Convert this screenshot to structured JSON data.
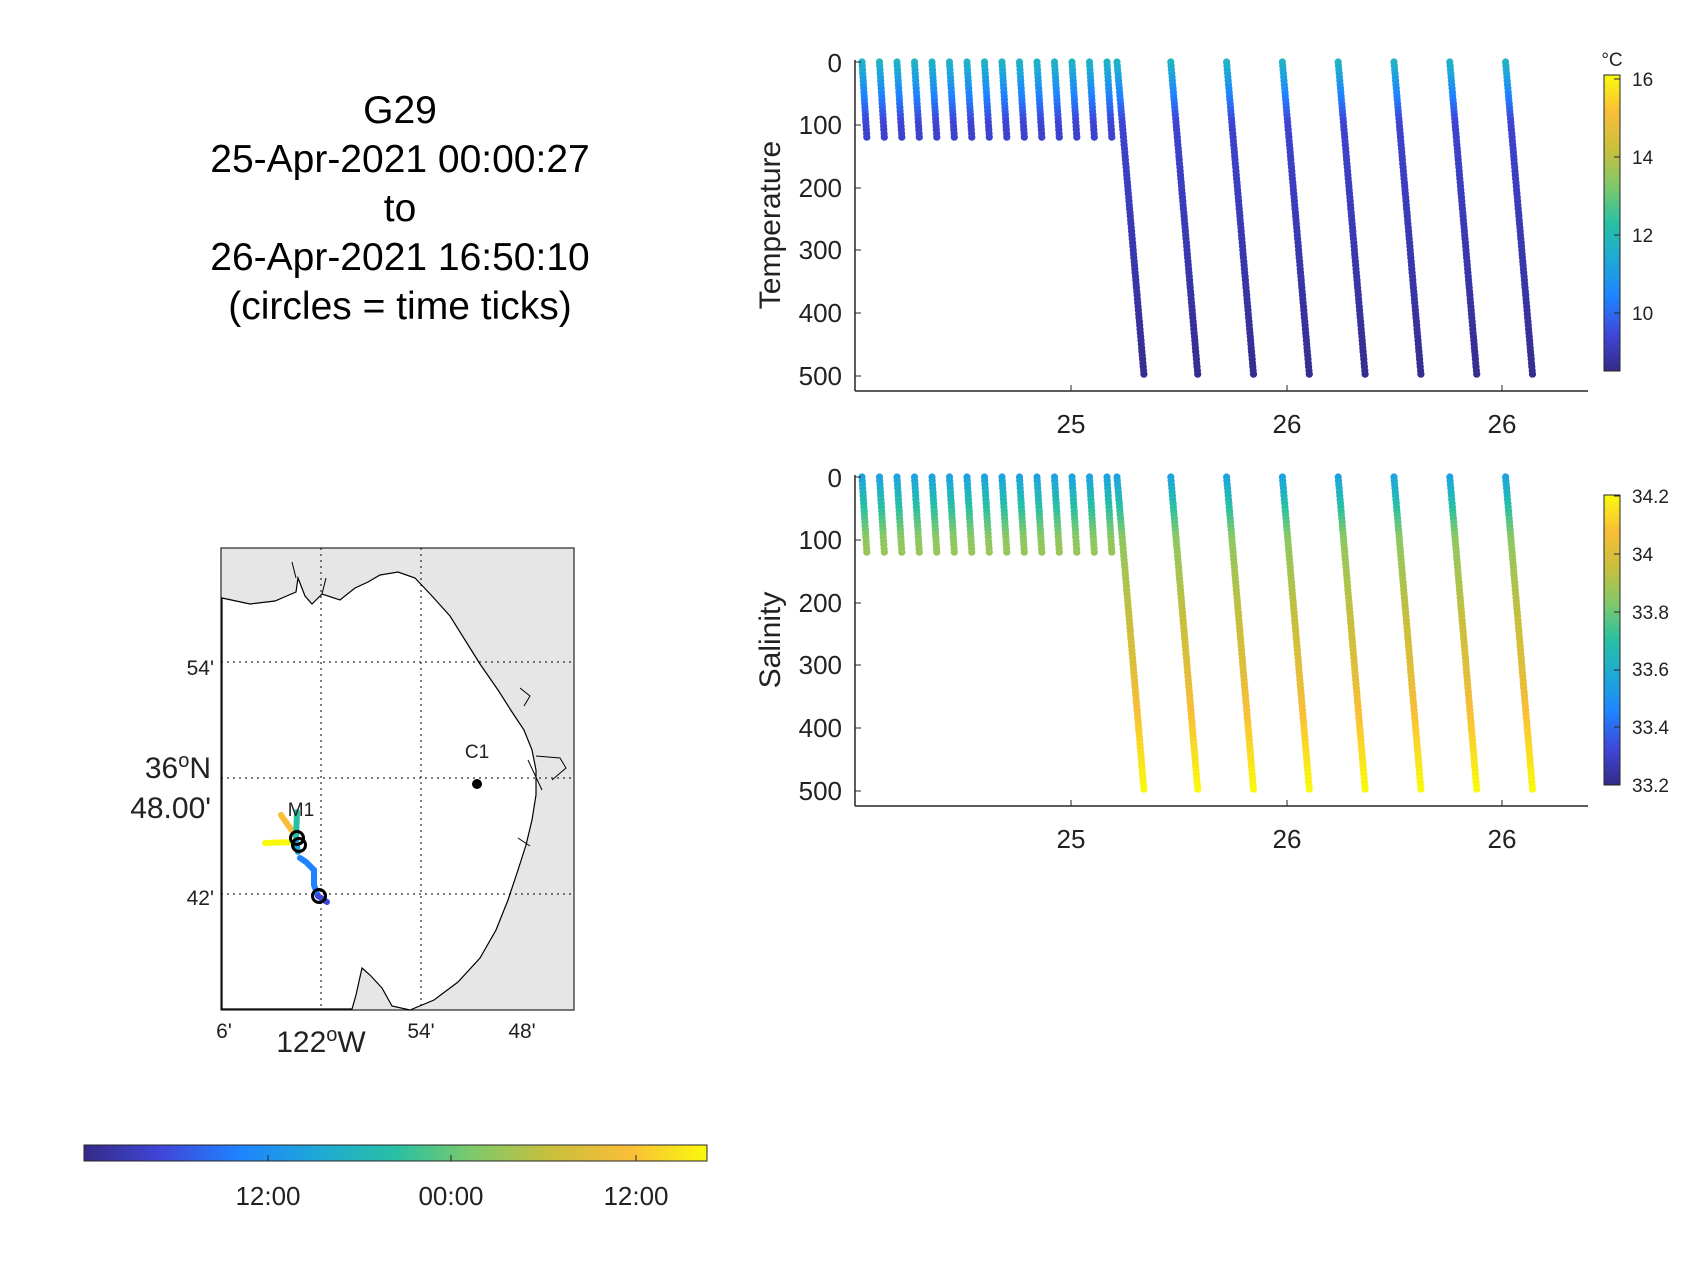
{
  "title": {
    "lines": [
      "G29",
      "25-Apr-2021 00:00:27",
      "to",
      "26-Apr-2021 16:50:10",
      "(circles = time ticks)"
    ]
  },
  "colors": {
    "parula": [
      "#352a87",
      "#3f47d9",
      "#1f83ff",
      "#1ea9d7",
      "#28c0a3",
      "#7fc96a",
      "#c9bf3c",
      "#f9be38",
      "#f9f90e"
    ],
    "land": "#e6e6e6",
    "axis": "#262626"
  },
  "temperature_panel": {
    "ylabel": "Temperature",
    "yticks": [
      "0",
      "100",
      "200",
      "300",
      "400",
      "500"
    ],
    "xticks": [
      "25",
      "26",
      "26"
    ],
    "colorbar_unit": "°C",
    "colorbar_ticks": [
      "16",
      "14",
      "12",
      "10"
    ]
  },
  "salinity_panel": {
    "ylabel": "Salinity",
    "yticks": [
      "0",
      "100",
      "200",
      "300",
      "400",
      "500"
    ],
    "xticks": [
      "25",
      "26",
      "26"
    ],
    "colorbar_ticks": [
      "34.2",
      "34",
      "33.8",
      "33.6",
      "33.4",
      "33.2"
    ]
  },
  "map": {
    "lat_ticks": [
      "54'",
      "42'"
    ],
    "lat_center_line1": "36",
    "lat_center_deg": "o",
    "lat_center_hemi": "N",
    "lat_center_line2": "48.00'",
    "lon_ticks": [
      "6'",
      "54'",
      "48'"
    ],
    "lon_center": "122",
    "lon_center_deg": "o",
    "lon_center_hemi": "W",
    "stations": [
      "M1",
      "C1"
    ]
  },
  "time_colorbar": {
    "ticks": [
      "12:00",
      "00:00",
      "12:00"
    ]
  },
  "chart_data": [
    {
      "type": "scatter",
      "panel": "temperature",
      "title": "",
      "xlabel": "",
      "ylabel": "Temperature",
      "y_axis": "depth (reversed)",
      "ylim": [
        0,
        500
      ],
      "x_ticks": [
        "25",
        "26",
        "26"
      ],
      "profiles": {
        "shallow_dives": 15,
        "shallow_max_depth": 125,
        "deep_dives": 8,
        "deep_max_depth": 500
      },
      "color_variable": "temperature (°C)",
      "clim": [
        8.7,
        16
      ],
      "surface_value": 11.8,
      "value_at_100m": 9.5,
      "deep_value": 8.8
    },
    {
      "type": "scatter",
      "panel": "salinity",
      "title": "",
      "xlabel": "",
      "ylabel": "Salinity",
      "y_axis": "depth (reversed)",
      "ylim": [
        0,
        500
      ],
      "x_ticks": [
        "25",
        "26",
        "26"
      ],
      "profiles": {
        "shallow_dives": 15,
        "shallow_max_depth": 125,
        "deep_dives": 8,
        "deep_max_depth": 500
      },
      "color_variable": "salinity",
      "clim": [
        33.2,
        34.2
      ],
      "surface_value": 33.55,
      "value_at_100m": 33.85,
      "value_at_300m": 34.0,
      "deep_value": 34.2
    },
    {
      "type": "map",
      "panel": "glider track",
      "stations": [
        "M1",
        "C1"
      ],
      "track_color_variable": "time",
      "time_ticks": [
        "12:00",
        "00:00",
        "12:00"
      ]
    }
  ]
}
